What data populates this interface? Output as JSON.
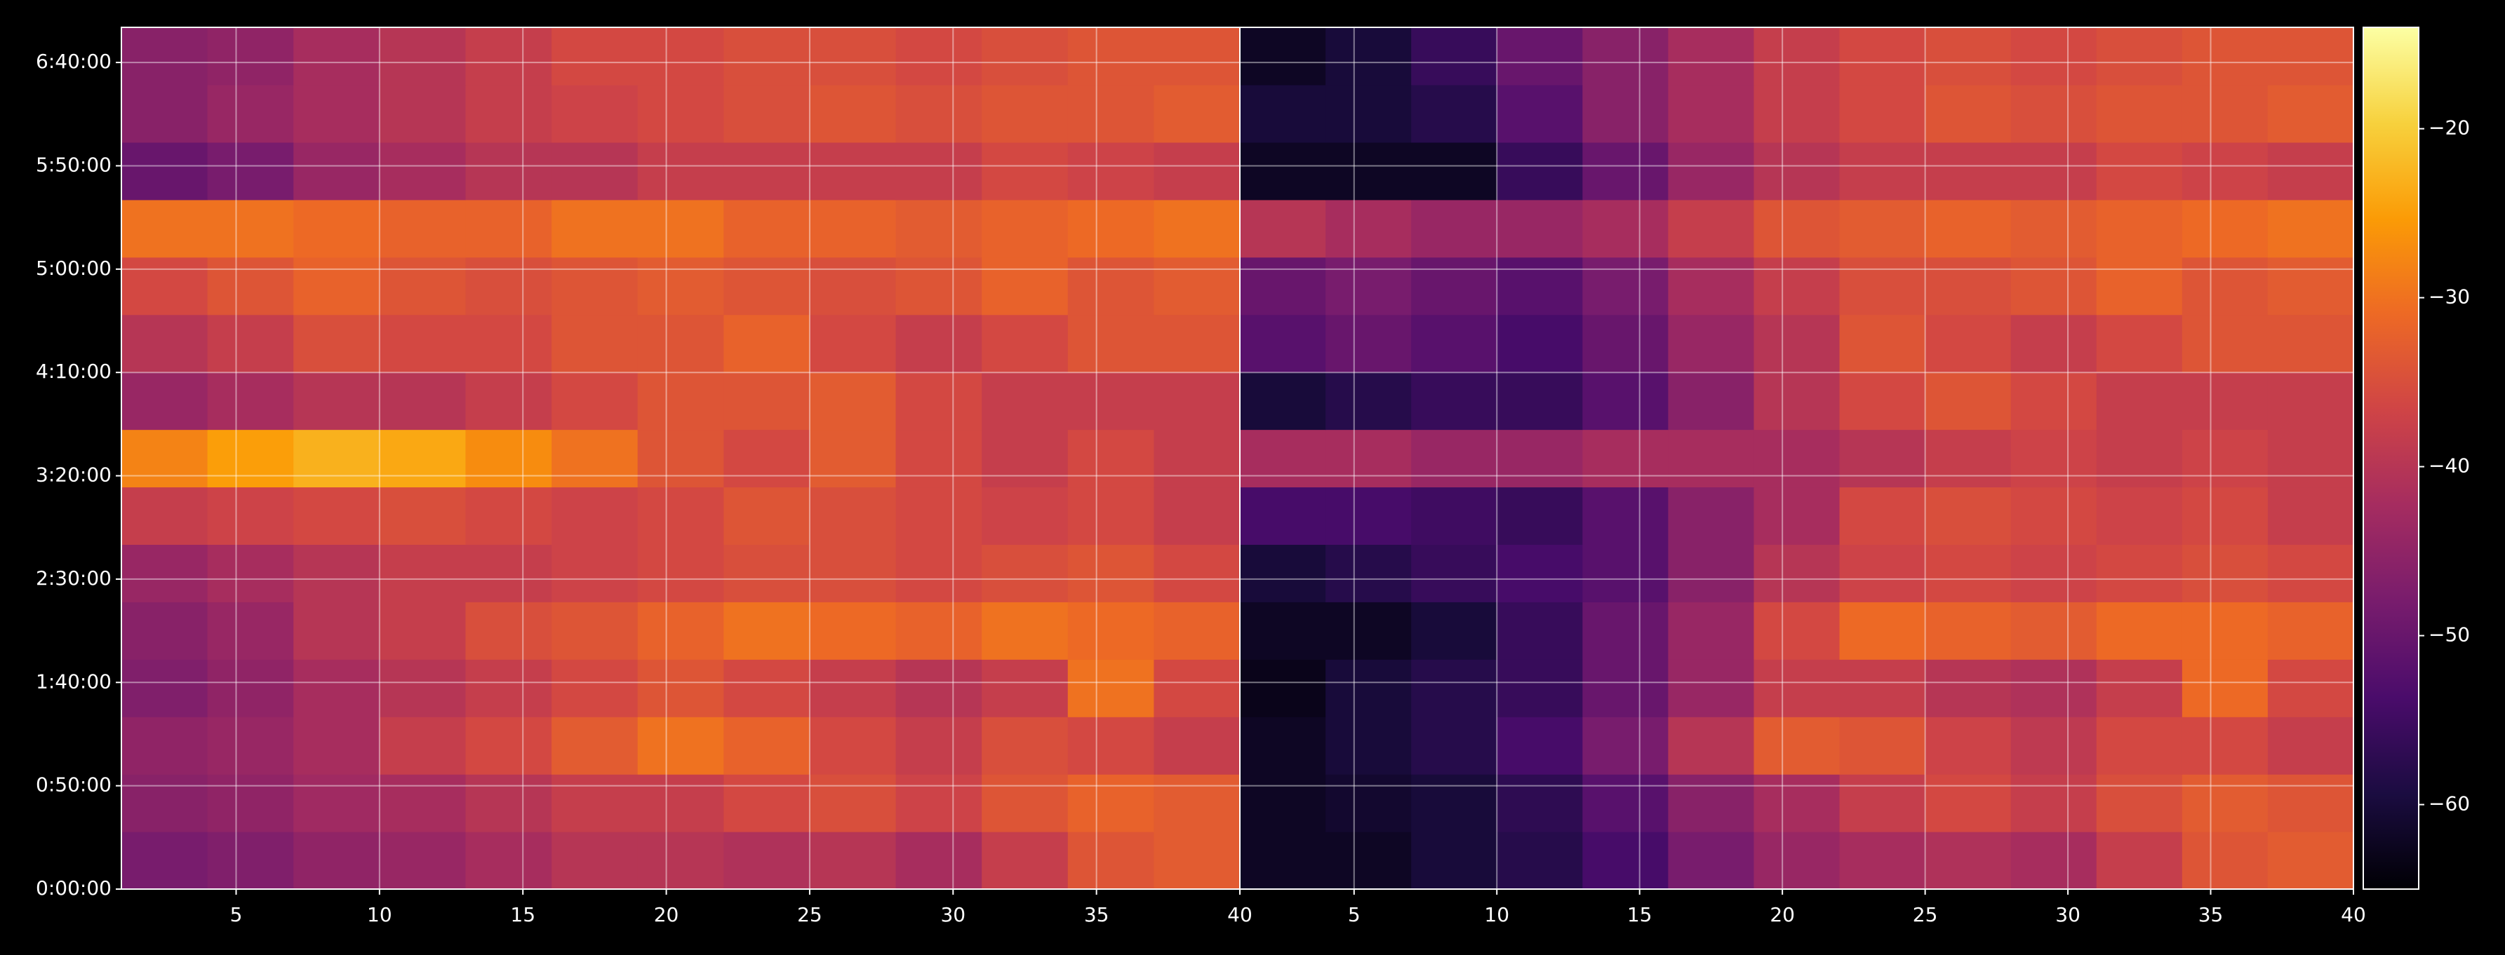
{
  "chart_data": {
    "type": "heatmap",
    "xlim": [
      1,
      40
    ],
    "xticks": [
      5,
      10,
      15,
      20,
      25,
      30,
      35,
      40
    ],
    "x_bins": [
      1,
      4,
      7,
      10,
      13,
      16,
      19,
      22,
      25,
      28,
      31,
      34,
      37,
      40
    ],
    "ylim": [
      0,
      25020
    ],
    "y_bins": [
      0,
      1668,
      3336,
      5004,
      6672,
      8340,
      10008,
      11676,
      13344,
      15012,
      16680,
      18348,
      20016,
      21684,
      23352,
      25020
    ],
    "yticks": [
      {
        "value": 0,
        "label": "0:00:00"
      },
      {
        "value": 3000,
        "label": "0:50:00"
      },
      {
        "value": 6000,
        "label": "1:40:00"
      },
      {
        "value": 9000,
        "label": "2:30:00"
      },
      {
        "value": 12000,
        "label": "3:20:00"
      },
      {
        "value": 15000,
        "label": "4:10:00"
      },
      {
        "value": 18000,
        "label": "5:00:00"
      },
      {
        "value": 21000,
        "label": "5:50:00"
      },
      {
        "value": 24000,
        "label": "6:40:00"
      }
    ],
    "grid": true,
    "clim": [
      -65,
      -14
    ],
    "cticks": [
      {
        "value": -20,
        "label": "−20"
      },
      {
        "value": -30,
        "label": "−30"
      },
      {
        "value": -40,
        "label": "−40"
      },
      {
        "value": -50,
        "label": "−50"
      },
      {
        "value": -60,
        "label": "−60"
      }
    ],
    "colormap": [
      "#000004",
      "#1b0c41",
      "#4a0c6b",
      "#781c6d",
      "#a52c60",
      "#cf4446",
      "#ed6925",
      "#fb9b06",
      "#f7d13d",
      "#fcffa4"
    ],
    "panels": [
      {
        "values": [
          [
            -48,
            -47,
            -45,
            -44,
            -42,
            -40,
            -40,
            -41,
            -40,
            -42,
            -38,
            -34,
            -33
          ],
          [
            -46,
            -45,
            -43,
            -42,
            -40,
            -38,
            -38,
            -36,
            -35,
            -37,
            -34,
            -32,
            -33
          ],
          [
            -45,
            -44,
            -42,
            -38,
            -36,
            -33,
            -30,
            -32,
            -36,
            -38,
            -35,
            -36,
            -38
          ],
          [
            -47,
            -45,
            -42,
            -40,
            -38,
            -36,
            -34,
            -36,
            -38,
            -40,
            -38,
            -30,
            -36
          ],
          [
            -46,
            -44,
            -40,
            -38,
            -35,
            -34,
            -32,
            -30,
            -31,
            -32,
            -30,
            -31,
            -32
          ],
          [
            -44,
            -42,
            -40,
            -38,
            -38,
            -37,
            -36,
            -35,
            -35,
            -36,
            -35,
            -34,
            -36
          ],
          [
            -38,
            -37,
            -36,
            -35,
            -36,
            -37,
            -36,
            -34,
            -35,
            -36,
            -37,
            -36,
            -38
          ],
          [
            -28,
            -25,
            -23,
            -24,
            -27,
            -30,
            -34,
            -36,
            -33,
            -36,
            -38,
            -36,
            -38
          ],
          [
            -44,
            -42,
            -40,
            -40,
            -38,
            -36,
            -34,
            -34,
            -33,
            -36,
            -38,
            -38,
            -38
          ],
          [
            -40,
            -38,
            -35,
            -36,
            -36,
            -34,
            -34,
            -32,
            -36,
            -38,
            -36,
            -34,
            -34
          ],
          [
            -36,
            -34,
            -32,
            -34,
            -35,
            -34,
            -33,
            -34,
            -35,
            -34,
            -32,
            -34,
            -33
          ],
          [
            -30,
            -30,
            -31,
            -32,
            -32,
            -30,
            -30,
            -32,
            -32,
            -33,
            -32,
            -31,
            -30
          ],
          [
            -50,
            -48,
            -44,
            -42,
            -40,
            -40,
            -38,
            -38,
            -38,
            -38,
            -36,
            -37,
            -38
          ],
          [
            -46,
            -44,
            -42,
            -40,
            -38,
            -37,
            -36,
            -35,
            -34,
            -35,
            -34,
            -34,
            -33
          ],
          [
            -46,
            -45,
            -42,
            -40,
            -38,
            -36,
            -36,
            -35,
            -35,
            -36,
            -35,
            -34,
            -34
          ]
        ]
      },
      {
        "values": [
          [
            -62,
            -62,
            -60,
            -58,
            -54,
            -48,
            -44,
            -42,
            -41,
            -42,
            -38,
            -34,
            -33
          ],
          [
            -62,
            -61,
            -60,
            -57,
            -52,
            -46,
            -42,
            -38,
            -36,
            -38,
            -35,
            -33,
            -34
          ],
          [
            -62,
            -60,
            -58,
            -54,
            -48,
            -40,
            -33,
            -34,
            -37,
            -39,
            -36,
            -36,
            -38
          ],
          [
            -63,
            -60,
            -58,
            -56,
            -50,
            -44,
            -38,
            -38,
            -40,
            -41,
            -38,
            -31,
            -36
          ],
          [
            -62,
            -62,
            -60,
            -56,
            -50,
            -44,
            -36,
            -31,
            -32,
            -33,
            -31,
            -31,
            -32
          ],
          [
            -60,
            -58,
            -56,
            -54,
            -52,
            -46,
            -40,
            -37,
            -36,
            -37,
            -36,
            -35,
            -36
          ],
          [
            -54,
            -54,
            -55,
            -56,
            -52,
            -46,
            -42,
            -36,
            -35,
            -36,
            -37,
            -36,
            -38
          ],
          [
            -42,
            -42,
            -44,
            -44,
            -42,
            -42,
            -42,
            -40,
            -38,
            -37,
            -38,
            -37,
            -38
          ],
          [
            -60,
            -58,
            -56,
            -56,
            -52,
            -46,
            -40,
            -36,
            -34,
            -36,
            -38,
            -38,
            -38
          ],
          [
            -52,
            -50,
            -52,
            -54,
            -50,
            -44,
            -40,
            -34,
            -36,
            -38,
            -36,
            -34,
            -34
          ],
          [
            -50,
            -48,
            -50,
            -52,
            -48,
            -42,
            -38,
            -35,
            -35,
            -34,
            -32,
            -34,
            -33
          ],
          [
            -40,
            -42,
            -44,
            -44,
            -42,
            -38,
            -34,
            -33,
            -32,
            -33,
            -32,
            -31,
            -30
          ],
          [
            -62,
            -62,
            -62,
            -56,
            -50,
            -44,
            -40,
            -38,
            -38,
            -38,
            -36,
            -37,
            -38
          ],
          [
            -60,
            -60,
            -58,
            -52,
            -46,
            -42,
            -38,
            -36,
            -34,
            -35,
            -34,
            -34,
            -33
          ],
          [
            -62,
            -60,
            -56,
            -50,
            -46,
            -42,
            -38,
            -36,
            -35,
            -36,
            -35,
            -34,
            -34
          ]
        ]
      }
    ]
  }
}
